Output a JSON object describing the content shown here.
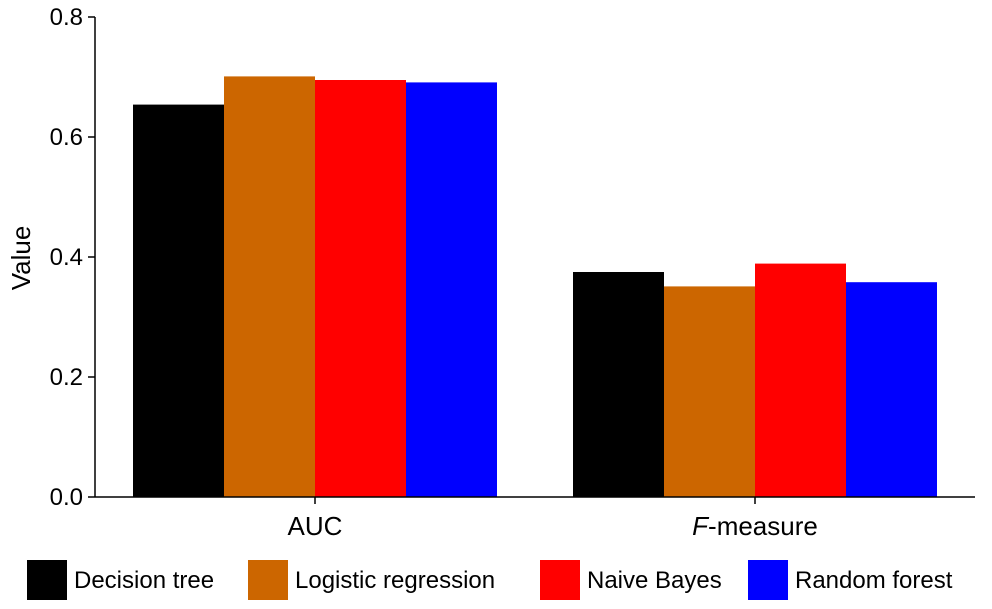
{
  "chart_data": {
    "type": "bar",
    "categories": [
      "AUC",
      "F-measure"
    ],
    "category_display": [
      {
        "prefix": "",
        "italic": "",
        "rest": "AUC"
      },
      {
        "prefix": "",
        "italic": "F",
        "rest": "-measure"
      }
    ],
    "series": [
      {
        "name": "Decision tree",
        "color": "#000000",
        "values": [
          0.654,
          0.375
        ]
      },
      {
        "name": "Logistic regression",
        "color": "#cc6600",
        "values": [
          0.701,
          0.351
        ]
      },
      {
        "name": "Naive Bayes",
        "color": "#ff0000",
        "values": [
          0.695,
          0.389
        ]
      },
      {
        "name": "Random forest",
        "color": "#0000ff",
        "values": [
          0.691,
          0.358
        ]
      }
    ],
    "ylabel": "Value",
    "ylim": [
      0,
      0.8
    ],
    "yticks": [
      "0.0",
      "0.2",
      "0.4",
      "0.6",
      "0.8"
    ],
    "ytick_values": [
      0,
      0.2,
      0.4,
      0.6,
      0.8
    ],
    "legend_position": "bottom",
    "grid": false
  }
}
